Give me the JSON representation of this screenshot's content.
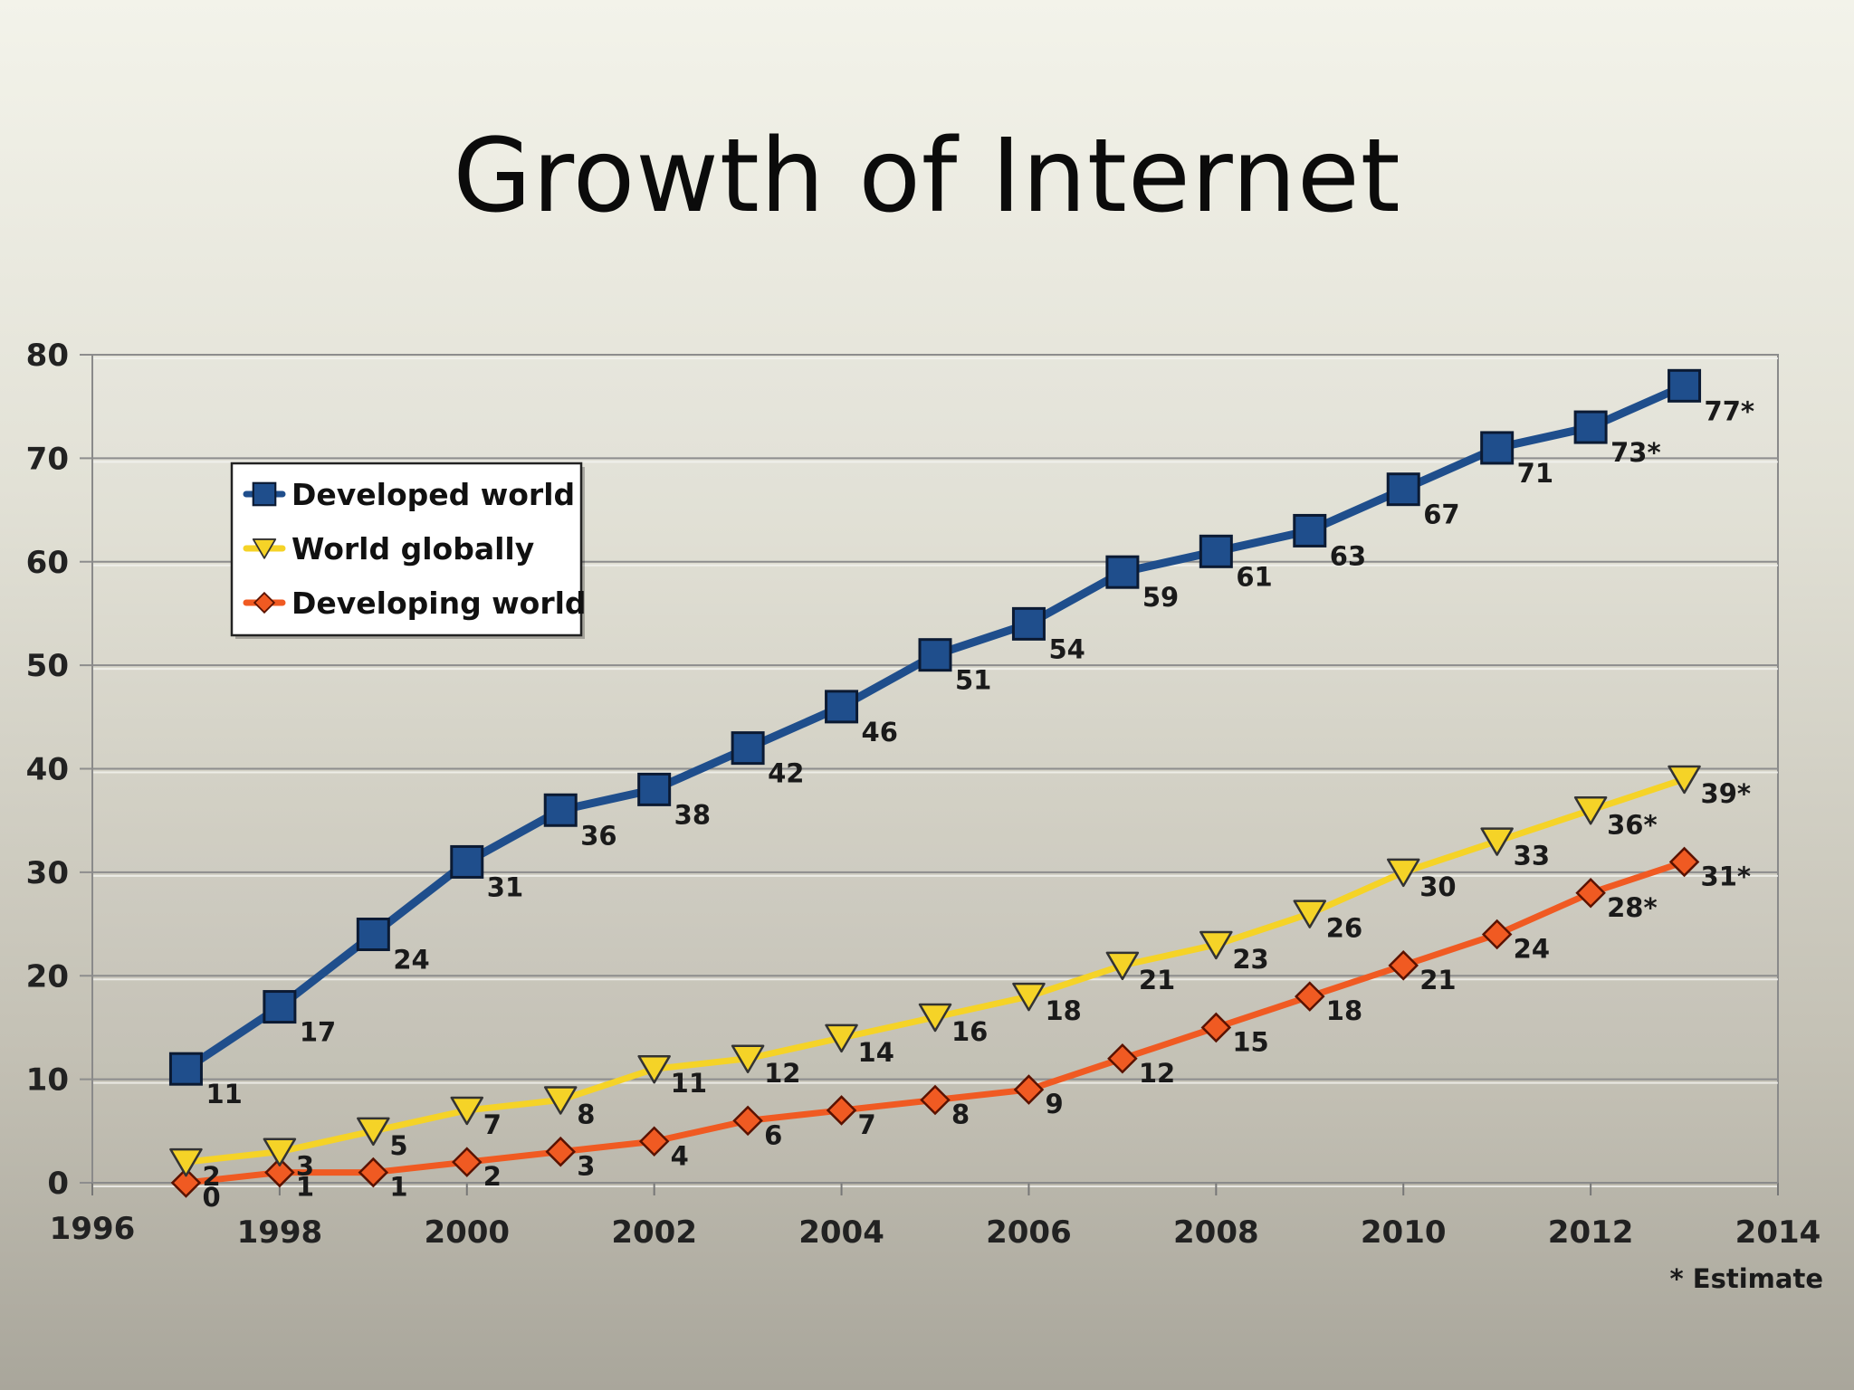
{
  "slide": {
    "title": "Growth of Internet"
  },
  "chart_data": {
    "type": "line",
    "title": "",
    "xlabel": "",
    "ylabel": "",
    "xlim": [
      1996,
      2014
    ],
    "ylim": [
      0,
      80
    ],
    "x_ticks": [
      "1996",
      "1998",
      "2000",
      "2002",
      "2004",
      "2006",
      "2008",
      "2010",
      "2012",
      "2014"
    ],
    "y_ticks": [
      "0",
      "10",
      "20",
      "30",
      "40",
      "50",
      "60",
      "70",
      "80"
    ],
    "grid": true,
    "legend_position": "top-left",
    "x": [
      1997,
      1998,
      1999,
      2000,
      2001,
      2002,
      2003,
      2004,
      2005,
      2006,
      2007,
      2008,
      2009,
      2010,
      2011,
      2012,
      2013
    ],
    "series": [
      {
        "name": "Developed world",
        "color": "#1f4e8c",
        "marker": "square",
        "values": [
          11,
          17,
          24,
          31,
          36,
          38,
          42,
          46,
          51,
          54,
          59,
          61,
          63,
          67,
          71,
          73,
          77
        ],
        "labels": [
          "11",
          "17",
          "24",
          "31",
          "36",
          "38",
          "42",
          "46",
          "51",
          "54",
          "59",
          "61",
          "63",
          "67",
          "71",
          "73*",
          "77*"
        ]
      },
      {
        "name": "World globally",
        "color": "#f5d327",
        "marker": "triangle-down",
        "values": [
          2,
          3,
          5,
          7,
          8,
          11,
          12,
          14,
          16,
          18,
          21,
          23,
          26,
          30,
          33,
          36,
          39
        ],
        "labels": [
          "2",
          "3",
          "5",
          "7",
          "8",
          "11",
          "12",
          "14",
          "16",
          "18",
          "21",
          "23",
          "26",
          "30",
          "33",
          "36*",
          "39*"
        ]
      },
      {
        "name": "Developing world",
        "color": "#f05a22",
        "marker": "diamond",
        "values": [
          0,
          1,
          1,
          2,
          3,
          4,
          6,
          7,
          8,
          9,
          12,
          15,
          18,
          21,
          24,
          28,
          31
        ],
        "labels": [
          "0",
          "1",
          "1",
          "2",
          "3",
          "4",
          "6",
          "7",
          "8",
          "9",
          "12",
          "15",
          "18",
          "21",
          "24",
          "28*",
          "31*"
        ]
      }
    ],
    "footnote": "* Estimate"
  }
}
